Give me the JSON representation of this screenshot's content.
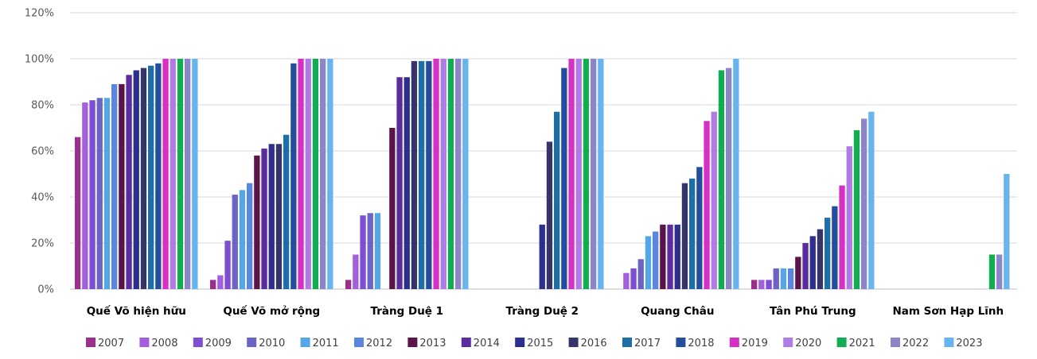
{
  "chart_data": {
    "type": "bar",
    "title": "",
    "xlabel": "",
    "ylabel": "",
    "ylim": [
      0,
      120
    ],
    "yticks": [
      "0%",
      "20%",
      "40%",
      "60%",
      "80%",
      "100%",
      "120%"
    ],
    "grid": true,
    "legend_position": "bottom",
    "categories": [
      "Quế Võ hiện hữu",
      "Quế Võ mở rộng",
      "Tràng Duệ 1",
      "Tràng Duệ 2",
      "Quang Châu",
      "Tân Phú Trung",
      "Nam Sơn Hạp Lĩnh"
    ],
    "series": [
      {
        "name": "2007",
        "color": "#9c2f8c",
        "values": [
          66,
          4,
          4,
          null,
          null,
          4,
          null
        ]
      },
      {
        "name": "2008",
        "color": "#a35fdc",
        "values": [
          81,
          6,
          15,
          null,
          7,
          4,
          null
        ]
      },
      {
        "name": "2009",
        "color": "#7d4ed1",
        "values": [
          82,
          21,
          32,
          null,
          9,
          4,
          null
        ]
      },
      {
        "name": "2010",
        "color": "#6c63c6",
        "values": [
          83,
          41,
          33,
          null,
          13,
          9,
          null
        ]
      },
      {
        "name": "2011",
        "color": "#55a6e6",
        "values": [
          83,
          43,
          33,
          null,
          23,
          9,
          null
        ]
      },
      {
        "name": "2012",
        "color": "#5b86e0",
        "values": [
          89,
          46,
          null,
          null,
          25,
          9,
          null
        ]
      },
      {
        "name": "2013",
        "color": "#5a1449",
        "values": [
          89,
          58,
          70,
          null,
          28,
          14,
          null
        ]
      },
      {
        "name": "2014",
        "color": "#5b2d9c",
        "values": [
          93,
          61,
          92,
          null,
          28,
          20,
          null
        ]
      },
      {
        "name": "2015",
        "color": "#2d2f8f",
        "values": [
          95,
          63,
          92,
          28,
          28,
          23,
          null
        ]
      },
      {
        "name": "2016",
        "color": "#35356a",
        "values": [
          96,
          63,
          99,
          64,
          46,
          26,
          null
        ]
      },
      {
        "name": "2017",
        "color": "#1d6fa5",
        "values": [
          97,
          67,
          99,
          77,
          48,
          31,
          null
        ]
      },
      {
        "name": "2018",
        "color": "#244d9e",
        "values": [
          98,
          98,
          99,
          96,
          53,
          36,
          null
        ]
      },
      {
        "name": "2019",
        "color": "#d630c4",
        "values": [
          100,
          100,
          100,
          100,
          73,
          45,
          null
        ]
      },
      {
        "name": "2020",
        "color": "#b17be6",
        "values": [
          100,
          100,
          100,
          100,
          77,
          62,
          null
        ]
      },
      {
        "name": "2021",
        "color": "#12ad52",
        "values": [
          100,
          100,
          100,
          100,
          95,
          69,
          15
        ]
      },
      {
        "name": "2022",
        "color": "#8c86c9",
        "values": [
          100,
          100,
          100,
          100,
          96,
          74,
          15
        ]
      },
      {
        "name": "2023",
        "color": "#67b4ee",
        "values": [
          100,
          100,
          100,
          100,
          100,
          77,
          50
        ]
      }
    ]
  }
}
